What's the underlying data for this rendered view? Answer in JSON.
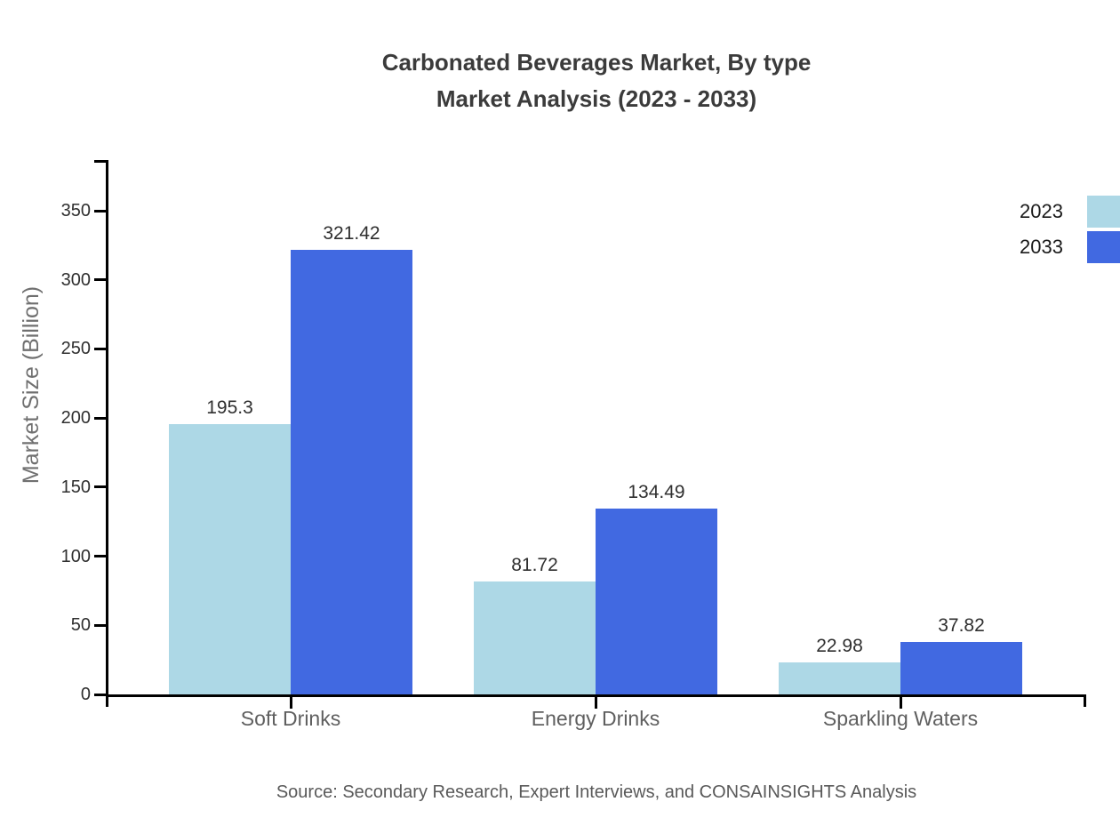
{
  "chart_data": {
    "type": "bar",
    "title": "Carbonated Beverages Market, By type",
    "subtitle": "Market Analysis (2023 - 2033)",
    "categories": [
      "Soft Drinks",
      "Energy Drinks",
      "Sparkling Waters"
    ],
    "series": [
      {
        "name": "2023",
        "color": "#add8e6",
        "values": [
          195.3,
          81.72,
          22.98
        ],
        "labels": [
          "195.3",
          "81.72",
          "22.98"
        ]
      },
      {
        "name": "2033",
        "color": "#4169e1",
        "values": [
          321.42,
          134.49,
          37.82
        ],
        "labels": [
          "321.42",
          "134.49",
          "37.82"
        ]
      }
    ],
    "ylabel": "Market Size (Billion)",
    "xlabel": "",
    "yticks": [
      0,
      50,
      100,
      150,
      200,
      250,
      300,
      350
    ],
    "ylim": [
      0,
      386
    ],
    "grid": false,
    "legend_position": "top-right",
    "axis_color": "#000000",
    "title_color": "#3b3b3b"
  },
  "footer": {
    "source": "Source: Secondary Research, Expert Interviews, and CONSAINSIGHTS Analysis"
  }
}
